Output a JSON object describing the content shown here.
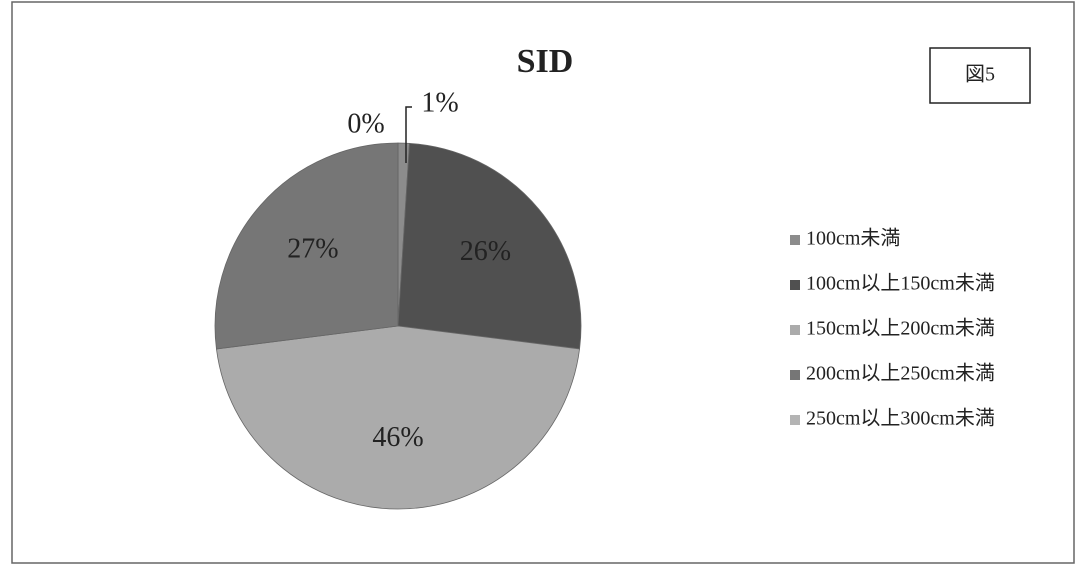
{
  "chart_data": {
    "type": "pie",
    "title": "SID",
    "annotation": "図5",
    "categories": [
      "100cm未満",
      "100cm以上150cm未満",
      "150cm以上200cm未満",
      "200cm以上250cm未満",
      "250cm以上300cm未満"
    ],
    "values": [
      1,
      26,
      46,
      27,
      0
    ],
    "value_labels": [
      "1%",
      "26%",
      "46%",
      "27%",
      "0%"
    ],
    "colors": [
      "#8c8c8c",
      "#505050",
      "#ababab",
      "#767676",
      "#b4b4b4"
    ],
    "legend": "right"
  }
}
